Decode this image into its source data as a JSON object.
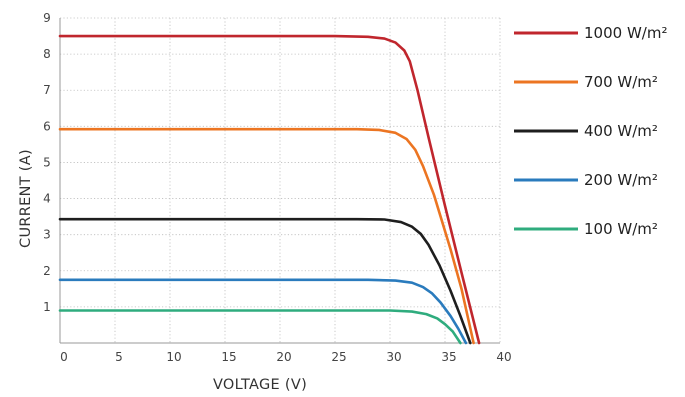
{
  "chart_data": {
    "type": "line",
    "xlabel": "VOLTAGE (V)",
    "ylabel": "CURRENT (A)",
    "xlim": [
      0,
      40
    ],
    "ylim": [
      0,
      9
    ],
    "x_ticks": [
      0,
      5,
      10,
      15,
      20,
      25,
      30,
      35,
      40
    ],
    "y_ticks": [
      1,
      2,
      3,
      4,
      5,
      6,
      7,
      8,
      9
    ],
    "grid": true,
    "legend_position": "right",
    "series": [
      {
        "name": "1000 W/m²",
        "color": "#c0262d",
        "points": [
          [
            0,
            8.5
          ],
          [
            25,
            8.5
          ],
          [
            28,
            8.48
          ],
          [
            29.5,
            8.43
          ],
          [
            30.5,
            8.32
          ],
          [
            31.3,
            8.1
          ],
          [
            31.8,
            7.8
          ],
          [
            32.5,
            7.0
          ],
          [
            33.5,
            5.7
          ],
          [
            35,
            3.8
          ],
          [
            36.5,
            1.95
          ],
          [
            38.1,
            0
          ]
        ]
      },
      {
        "name": "700 W/m²",
        "color": "#ec7522",
        "points": [
          [
            0,
            5.92
          ],
          [
            27,
            5.92
          ],
          [
            29,
            5.9
          ],
          [
            30.5,
            5.82
          ],
          [
            31.5,
            5.65
          ],
          [
            32.3,
            5.35
          ],
          [
            33,
            4.9
          ],
          [
            34,
            4.1
          ],
          [
            35.5,
            2.6
          ],
          [
            36.5,
            1.5
          ],
          [
            37.6,
            0
          ]
        ]
      },
      {
        "name": "400 W/m²",
        "color": "#1e1e1e",
        "points": [
          [
            0,
            3.43
          ],
          [
            27,
            3.43
          ],
          [
            29.5,
            3.42
          ],
          [
            31,
            3.35
          ],
          [
            32,
            3.22
          ],
          [
            32.8,
            3.02
          ],
          [
            33.5,
            2.72
          ],
          [
            34.5,
            2.15
          ],
          [
            35.5,
            1.45
          ],
          [
            36.4,
            0.75
          ],
          [
            37.3,
            0
          ]
        ]
      },
      {
        "name": "200 W/m²",
        "color": "#2a7bbd",
        "points": [
          [
            0,
            1.75
          ],
          [
            28,
            1.75
          ],
          [
            30.5,
            1.73
          ],
          [
            32,
            1.67
          ],
          [
            33,
            1.55
          ],
          [
            33.8,
            1.38
          ],
          [
            34.6,
            1.12
          ],
          [
            35.5,
            0.75
          ],
          [
            36.2,
            0.4
          ],
          [
            36.9,
            0
          ]
        ]
      },
      {
        "name": "100 W/m²",
        "color": "#2fac7e",
        "points": [
          [
            0,
            0.9
          ],
          [
            30,
            0.9
          ],
          [
            32,
            0.87
          ],
          [
            33.3,
            0.8
          ],
          [
            34.3,
            0.68
          ],
          [
            35,
            0.52
          ],
          [
            35.7,
            0.32
          ],
          [
            36.4,
            0
          ]
        ]
      }
    ]
  }
}
